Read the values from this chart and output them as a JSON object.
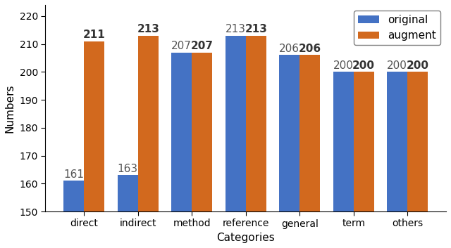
{
  "categories": [
    "direct",
    "indirect",
    "method",
    "reference",
    "general",
    "term",
    "others"
  ],
  "original": [
    161,
    163,
    207,
    213,
    206,
    200,
    200
  ],
  "augment": [
    211,
    213,
    207,
    213,
    206,
    200,
    200
  ],
  "original_color": "#4472C4",
  "augment_color": "#D2691E",
  "ylabel": "Numbers",
  "xlabel": "Categories",
  "ylim": [
    150,
    224
  ],
  "yticks": [
    150,
    160,
    170,
    180,
    190,
    200,
    210,
    220
  ],
  "legend_labels": [
    "original",
    "augment"
  ],
  "bar_width": 0.38,
  "label_fontsize": 11,
  "tick_fontsize": 10,
  "annotation_fontsize": 11
}
